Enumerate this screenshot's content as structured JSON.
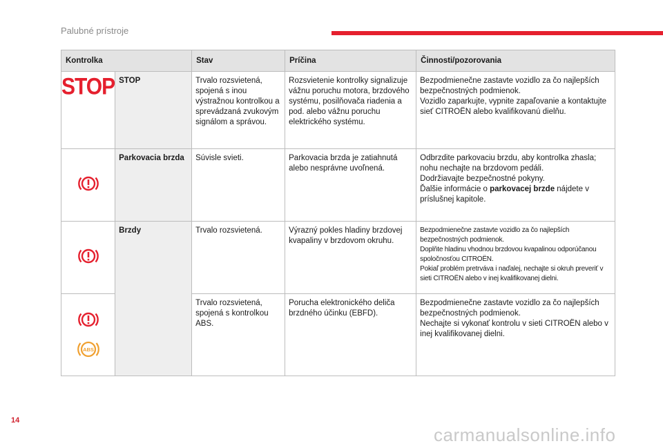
{
  "header": {
    "section_title": "Palubné prístroje"
  },
  "footer": {
    "page_number": "14",
    "watermark": "carmanualsonline.info"
  },
  "colors": {
    "accent_red": "#e5202e",
    "warning_red": "#e5202e",
    "abs_amber": "#f0a030"
  },
  "table": {
    "columns": [
      "Kontrolka",
      "Stav",
      "Príčina",
      "Činnosti/pozorovania"
    ],
    "rows": [
      {
        "icon": "stop-icon",
        "icon_text": "STOP",
        "name": "STOP",
        "state": "Trvalo rozsvietená, spojená s inou výstražnou kontrolkou a sprevádzaná zvukovým signálom a správou.",
        "cause": "Rozsvietenie kontrolky signalizuje vážnu poruchu motora, brzdového systému, posilňovača riadenia a pod. alebo vážnu poruchu elektrického systému.",
        "action_lines": [
          "Bezpodmienečne zastavte vozidlo za čo najlepších bezpečnostných podmienok.",
          "Vozidlo zaparkujte, vypnite zapaľovanie a kontaktujte sieť CITROËN alebo kvalifikovanú dielňu."
        ]
      },
      {
        "icon": "brake-warning-icon",
        "name": "Parkovacia brzda",
        "state": "Súvisle svieti.",
        "cause": "Parkovacia brzda je zatiahnutá alebo nesprávne uvoľnená.",
        "action_lines": [
          "Odbrzdite parkovaciu brzdu, aby kontrolka zhasla; nohu nechajte na brzdovom pedáli.",
          "Dodržiavajte bezpečnostné pokyny."
        ],
        "action_ref_prefix": "Ďalšie informácie o ",
        "action_ref_bold": "parkovacej brzde",
        "action_ref_suffix": " nájdete v príslušnej kapitole."
      },
      {
        "icon": "brake-warning-icon",
        "name": "Brzdy",
        "state": "Trvalo rozsvietená.",
        "cause": "Výrazný pokles hladiny brzdovej kvapaliny v brzdovom okruhu.",
        "action_lines": [
          "Bezpodmienečne zastavte vozidlo za čo najlepších bezpečnostných podmienok.",
          "Doplňte hladinu vhodnou brzdovou kvapalinou odporúčanou spoločnosťou CITROËN.",
          "Pokiaľ problém pretrváva i naďalej, nechajte si okruh preveriť v sieti CITROËN alebo v inej kvalifikovanej dielni."
        ]
      },
      {
        "icons": [
          "brake-warning-icon",
          "abs-icon"
        ],
        "abs_label": "ABS",
        "state": "Trvalo rozsvietená, spojená s kontrolkou ABS.",
        "cause": "Porucha elektronického deliča brzdného účinku (EBFD).",
        "action_lines": [
          "Bezpodmienečne zastavte vozidlo za čo najlepších bezpečnostných podmienok.",
          "Nechajte si vykonať kontrolu v sieti CITROËN alebo v inej kvalifikovanej dielni."
        ]
      }
    ]
  }
}
